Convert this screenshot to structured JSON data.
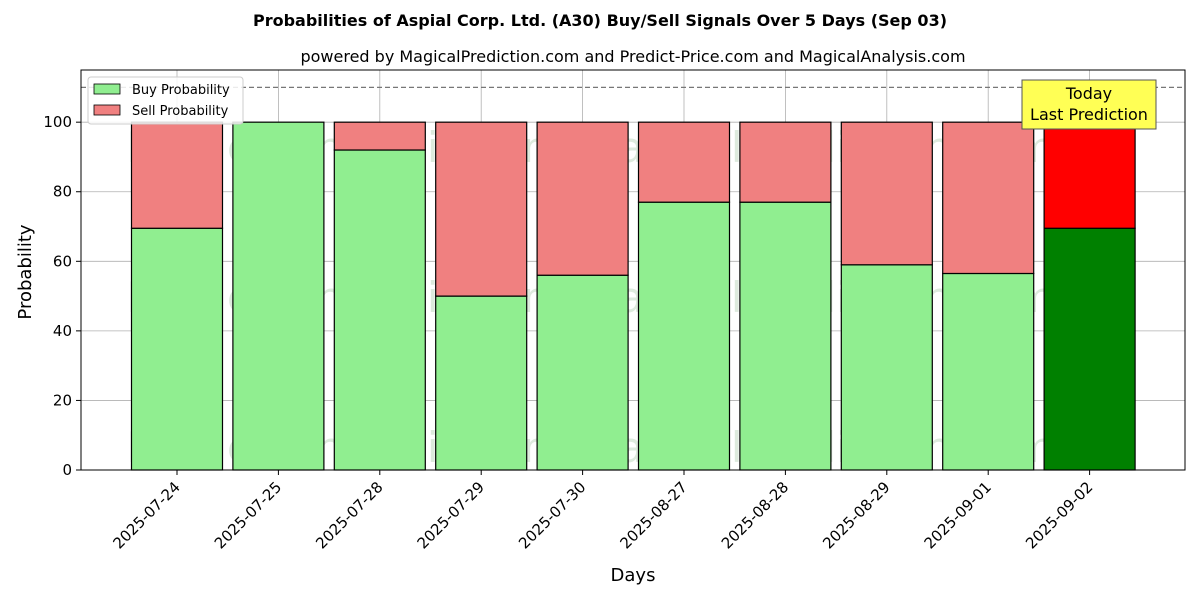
{
  "chart_data": {
    "type": "bar",
    "stacked": true,
    "title": "Probabilities of Aspial Corp. Ltd. (A30) Buy/Sell Signals Over 5 Days (Sep 03)",
    "subtitle": "powered by MagicalPrediction.com and Predict-Price.com and MagicalAnalysis.com",
    "xlabel": "Days",
    "ylabel": "Probability",
    "ylim": [
      0,
      115
    ],
    "yticks": [
      0,
      20,
      40,
      60,
      80,
      100
    ],
    "grid": true,
    "legend_position": "top-left",
    "reference_line": 110,
    "categories": [
      "2025-07-24",
      "2025-07-25",
      "2025-07-28",
      "2025-07-29",
      "2025-07-30",
      "2025-08-27",
      "2025-08-28",
      "2025-08-29",
      "2025-09-01",
      "2025-09-02"
    ],
    "series": [
      {
        "name": "Buy Probability",
        "color": "#90ee90",
        "values": [
          69.5,
          100,
          92,
          50,
          56,
          77,
          77,
          59,
          56.5,
          69.5
        ]
      },
      {
        "name": "Sell Probability",
        "color": "#f08080",
        "values": [
          30.5,
          0,
          8,
          50,
          44,
          23,
          23,
          41,
          43.5,
          30.5
        ]
      }
    ],
    "highlight": {
      "index": 9,
      "buy_color": "#008000",
      "sell_color": "#ff0000"
    },
    "annotation": {
      "line1": "Today",
      "line2": "Last Prediction",
      "bg_color": "#ffff55"
    },
    "watermarks": [
      "MagicalAnalysis.com",
      "MagicalPrediction.com"
    ]
  }
}
